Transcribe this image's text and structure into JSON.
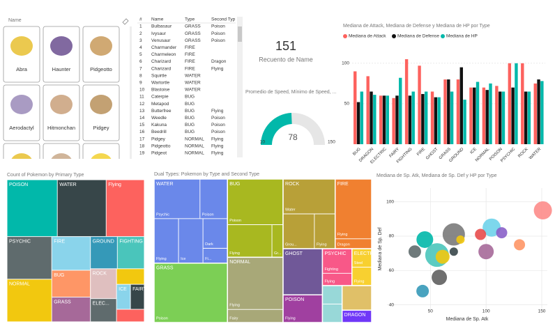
{
  "slicer": {
    "title": "Name",
    "items": [
      "Abra",
      "Haunter",
      "Pidgeotto",
      "Aerodactyl",
      "Hitmonchan",
      "Pidgey"
    ]
  },
  "table": {
    "columns": [
      "#",
      "Name",
      "Type",
      "Second Typ"
    ],
    "rows": [
      [
        1,
        "Bulbasaur",
        "GRASS",
        "Poison"
      ],
      [
        2,
        "Ivysaur",
        "GRASS",
        "Poison"
      ],
      [
        3,
        "Venusaur",
        "GRASS",
        "Poison"
      ],
      [
        4,
        "Charmander",
        "FIRE",
        null
      ],
      [
        5,
        "Charmeleon",
        "FIRE",
        null
      ],
      [
        6,
        "Charizard",
        "FIRE",
        "Dragon"
      ],
      [
        7,
        "Charizard",
        "FIRE",
        "Flying"
      ],
      [
        8,
        "Squirtle",
        "WATER",
        null
      ],
      [
        9,
        "Wartortle",
        "WATER",
        null
      ],
      [
        10,
        "Blastoise",
        "WATER",
        null
      ],
      [
        11,
        "Caterpie",
        "BUG",
        null
      ],
      [
        12,
        "Metapod",
        "BUG",
        null
      ],
      [
        13,
        "Butterfree",
        "BUG",
        "Flying"
      ],
      [
        14,
        "Weedle",
        "BUG",
        "Poison"
      ],
      [
        15,
        "Kakuna",
        "BUG",
        "Poison"
      ],
      [
        16,
        "Beedrill",
        "BUG",
        "Poison"
      ],
      [
        17,
        "Pidgey",
        "NORMAL",
        "Flying"
      ],
      [
        18,
        "Pidgeotto",
        "NORMAL",
        "Flying"
      ],
      [
        19,
        "Pidgeot",
        "NORMAL",
        "Flying"
      ]
    ]
  },
  "card": {
    "value": 151,
    "label": "Recuento de Name"
  },
  "chart_data": [
    {
      "type": "bar",
      "title": "Mediana de Attack, Mediana de Defense y Mediana de HP por Type",
      "categories": [
        "BUG",
        "DRAGON",
        "ELECTRIC",
        "FAIRY",
        "FIGHTING",
        "FIRE",
        "GHOST",
        "GRASS",
        "GROUND",
        "ICE",
        "NORMAL",
        "POISON",
        "PSYCHIC",
        "ROCK",
        "WATER"
      ],
      "series": [
        {
          "name": "Mediana de Attack",
          "color": "#fd625e",
          "values": [
            90,
            84,
            60,
            57,
            105,
            97,
            65,
            80,
            80,
            70,
            70,
            72,
            100,
            100,
            75
          ]
        },
        {
          "name": "Mediana de Defense",
          "color": "#111111",
          "values": [
            52,
            65,
            60,
            60,
            60,
            62,
            58,
            80,
            95,
            70,
            67,
            65,
            70,
            65,
            80
          ]
        },
        {
          "name": "Mediana de HP",
          "color": "#01b8aa",
          "values": [
            65,
            61,
            60,
            82,
            65,
            65,
            58,
            65,
            55,
            77,
            75,
            65,
            100,
            65,
            78
          ]
        }
      ],
      "ylim": [
        0,
        105
      ],
      "yticks": [
        50,
        100
      ],
      "grid": true,
      "legend": "top"
    },
    {
      "type": "gauge",
      "title": "Promedio de Speed, Mínimo de Speed, ...",
      "value": 78,
      "min": 10,
      "max": 150,
      "color": "#01b8aa"
    },
    {
      "type": "treemap",
      "title": "Count of Pokemon by Primary Type",
      "categories": [
        "POISON",
        "WATER",
        "Flying",
        "PSYCHIC",
        "NORMAL",
        "FIRE",
        "BUG",
        "GRASS",
        "GROUND",
        "FIGHTING",
        "ROCK",
        "ELEC...",
        null,
        "ICE",
        "FAIRY",
        null
      ],
      "values": [
        33,
        32,
        25,
        22,
        22,
        15,
        12,
        11,
        10,
        10,
        9,
        7,
        5,
        4,
        4,
        4
      ],
      "colors": [
        "#01b8aa",
        "#374649",
        "#fd625e",
        "#5f6b6d",
        "#f2c80f",
        "#8ad4eb",
        "#fe9666",
        "#a66999",
        "#3599b8",
        "#4ac5bb",
        "#dfbfbf",
        "#5f6b6d",
        "#f2c80f",
        "#8ad4eb",
        "#374649",
        "#fd625e"
      ]
    },
    {
      "type": "treemap",
      "title": "Dual Types: Pokemon by Type and Second Type",
      "groups": [
        {
          "name": "WATER",
          "color": "#6a88ea",
          "children": [
            {
              "name": "Psychic",
              "value": 5
            },
            {
              "name": "Poison",
              "value": 3
            },
            {
              "name": "Flying",
              "value": 3
            },
            {
              "name": "Ice",
              "value": 3
            },
            {
              "name": "Dark",
              "value": 2
            },
            {
              "name": "Fi...",
              "value": 1
            }
          ]
        },
        {
          "name": "GRASS",
          "color": "#7ccf55",
          "children": [
            {
              "name": "Poison",
              "value": 12
            }
          ]
        },
        {
          "name": "BUG",
          "color": "#a8b820",
          "children": [
            {
              "name": "Poison",
              "value": 7
            },
            {
              "name": "Flying",
              "value": 4
            },
            {
              "name": "Gr...",
              "value": 1
            }
          ]
        },
        {
          "name": "NORMAL",
          "color": "#a8a878",
          "children": [
            {
              "name": "Flying",
              "value": 8
            },
            {
              "name": "Fairy",
              "value": 2
            }
          ]
        },
        {
          "name": "ROCK",
          "color": "#b8a038",
          "children": [
            {
              "name": "Water",
              "value": 5
            },
            {
              "name": "Grou...",
              "value": 3
            },
            {
              "name": "Flying",
              "value": 2
            }
          ]
        },
        {
          "name": "FIRE",
          "color": "#f08030",
          "children": [
            {
              "name": "Flying",
              "value": 6
            },
            {
              "name": "Dragon",
              "value": 1
            }
          ]
        },
        {
          "name": "GHOST",
          "color": "#705898",
          "children": [
            {
              "name": null,
              "value": 5
            }
          ]
        },
        {
          "name": "POISON",
          "color": "#a040a0",
          "children": [
            {
              "name": "Flying",
              "value": 3
            }
          ]
        },
        {
          "name": "PSYCHIC",
          "color": "#f85888",
          "children": [
            {
              "name": "Fighting",
              "value": 2
            },
            {
              "name": "Flying",
              "value": 1
            }
          ]
        },
        {
          "name": "ELECTRIC",
          "color": "#f8d030",
          "children": [
            {
              "name": "Steel",
              "value": 1
            },
            {
              "name": "Flying",
              "value": 1
            }
          ]
        },
        {
          "name": null,
          "color": "#98d8d8",
          "children": [
            {
              "name": null,
              "value": 1
            },
            {
              "name": null,
              "value": 1
            }
          ]
        },
        {
          "name": null,
          "color": "#e0c068",
          "children": [
            {
              "name": null,
              "value": 2
            }
          ]
        },
        {
          "name": "DRAGON",
          "color": "#7038f8",
          "children": [
            {
              "name": null,
              "value": 1
            }
          ]
        }
      ]
    },
    {
      "type": "scatter",
      "title": "Mediana de Sp. Atk, Mediana de Sp. Def y HP por Type",
      "xlabel": "Mediana de Sp. Atk",
      "ylabel": "Mediana de Sp. Def",
      "x": [
        151,
        105,
        71,
        95,
        114,
        45,
        56,
        36,
        61,
        71,
        77,
        100,
        130,
        58,
        43
      ],
      "values": [
        95,
        85,
        81,
        81,
        82,
        78,
        69,
        71,
        68,
        71,
        78,
        71,
        75,
        56,
        48
      ],
      "sizes": [
        78,
        78,
        96,
        48,
        48,
        72,
        102,
        54,
        60,
        36,
        36,
        66,
        48,
        66,
        54
      ],
      "colors": [
        "#fd8c8a",
        "#6fd3ea",
        "#7a7a7a",
        "#e84c4c",
        "#8a60c9",
        "#01b8aa",
        "#4ac5bb",
        "#5f6b6d",
        "#f2c80f",
        "#374649",
        "#f2c80f",
        "#a66999",
        "#fe9666",
        "#5f5f5f",
        "#3599b8"
      ],
      "xlim": [
        11,
        155
      ],
      "ylim": [
        37,
        108
      ],
      "xticks": [
        50,
        100,
        150
      ],
      "yticks": [
        40,
        60,
        80,
        100
      ],
      "grid": true
    }
  ]
}
